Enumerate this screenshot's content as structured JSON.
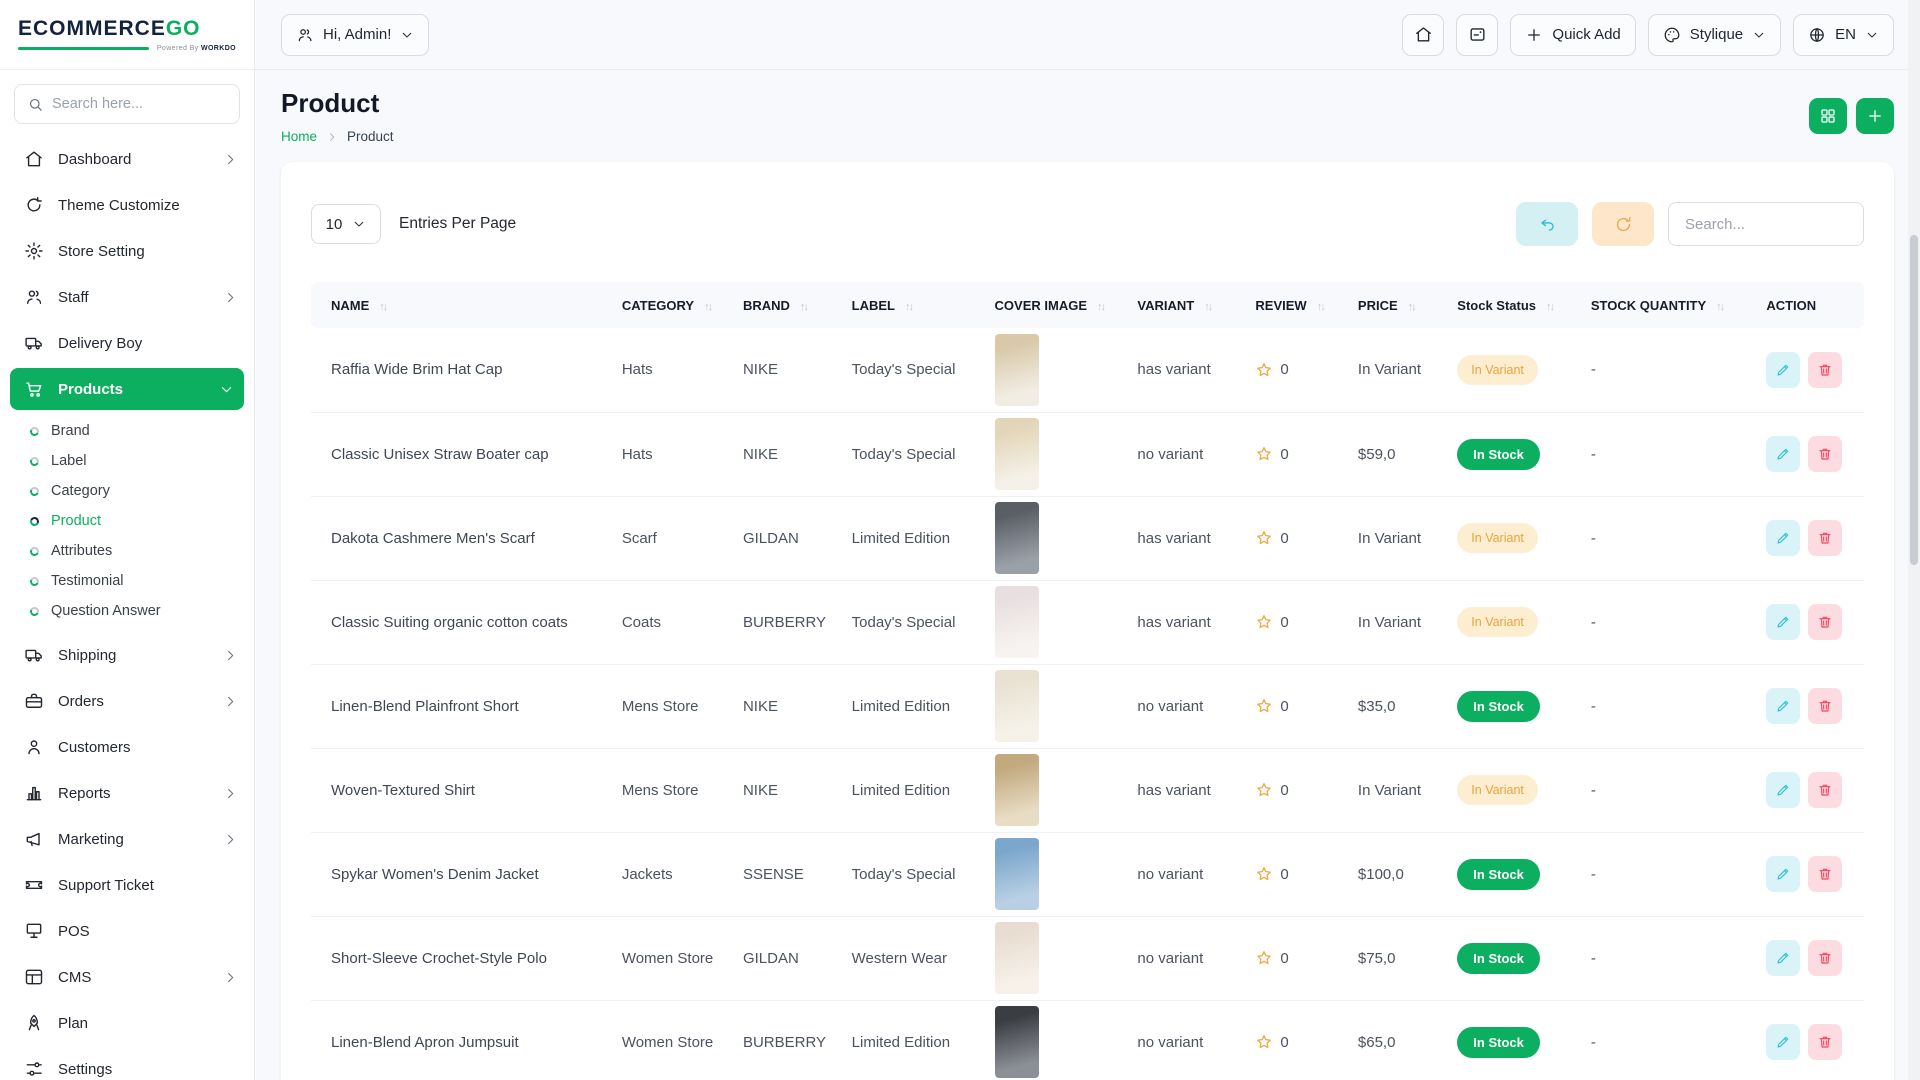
{
  "brand": {
    "name_primary": "ECOMMERCE",
    "name_accent": "GO",
    "powered_by": "Powered By ",
    "powered_brand": "WORKDO"
  },
  "colors": {
    "accent_green": "#0caf60",
    "logo_navy": "#14233c",
    "badge_variant_bg": "#fdeed2",
    "badge_variant_text": "#eca33c",
    "edit_btn": "#2ec2d8",
    "delete_btn": "#f2455f",
    "undo_btn": "#2ebcd4",
    "refresh_btn": "#f2a44a",
    "star": "#f2a43d"
  },
  "sidebar": {
    "search_placeholder": "Search here...",
    "items": [
      {
        "label": "Dashboard",
        "icon": "home-icon",
        "chevron": "right"
      },
      {
        "label": "Theme Customize",
        "icon": "theme-icon",
        "chevron": ""
      },
      {
        "label": "Store Setting",
        "icon": "gear-icon",
        "chevron": ""
      },
      {
        "label": "Staff",
        "icon": "users-icon",
        "chevron": "right"
      },
      {
        "label": "Delivery Boy",
        "icon": "truck-icon",
        "chevron": ""
      },
      {
        "label": "Products",
        "icon": "cart-icon",
        "chevron": "down",
        "active": true,
        "children": [
          "Brand",
          "Label",
          "Category",
          "Product",
          "Attributes",
          "Testimonial",
          "Question Answer"
        ],
        "active_child": "Product"
      },
      {
        "label": "Shipping",
        "icon": "shipping-truck-icon",
        "chevron": "right"
      },
      {
        "label": "Orders",
        "icon": "briefcase-icon",
        "chevron": "right"
      },
      {
        "label": "Customers",
        "icon": "user-icon",
        "chevron": ""
      },
      {
        "label": "Reports",
        "icon": "bar-chart-icon",
        "chevron": "right"
      },
      {
        "label": "Marketing",
        "icon": "megaphone-icon",
        "chevron": "right"
      },
      {
        "label": "Support Ticket",
        "icon": "ticket-icon",
        "chevron": ""
      },
      {
        "label": "POS",
        "icon": "pos-monitor-icon",
        "chevron": ""
      },
      {
        "label": "CMS",
        "icon": "cms-layout-icon",
        "chevron": "right"
      },
      {
        "label": "Plan",
        "icon": "plan-rocket-icon",
        "chevron": ""
      },
      {
        "label": "Settings",
        "icon": "sliders-icon",
        "chevron": ""
      }
    ]
  },
  "topbar": {
    "greeting": "Hi, Admin!",
    "quick_add": "Quick Add",
    "theme_name": "Stylique",
    "language": "EN"
  },
  "page": {
    "title": "Product",
    "breadcrumb": {
      "home": "Home",
      "current": "Product"
    }
  },
  "controls": {
    "entries_value": "10",
    "entries_label": "Entries Per Page",
    "search_placeholder": "Search..."
  },
  "table": {
    "columns": [
      {
        "label": "NAME",
        "sortable": true
      },
      {
        "label": "CATEGORY",
        "sortable": true
      },
      {
        "label": "BRAND",
        "sortable": true
      },
      {
        "label": "LABEL",
        "sortable": true
      },
      {
        "label": "COVER IMAGE",
        "sortable": true
      },
      {
        "label": "VARIANT",
        "sortable": true
      },
      {
        "label": "REVIEW",
        "sortable": true
      },
      {
        "label": "PRICE",
        "sortable": true
      },
      {
        "label": "Stock Status",
        "sortable": true
      },
      {
        "label": "STOCK QUANTITY",
        "sortable": true
      },
      {
        "label": "ACTION",
        "sortable": false
      }
    ],
    "rows": [
      {
        "name": "Raffia Wide Brim Hat Cap",
        "category": "Hats",
        "brand": "NIKE",
        "label": "Today's Special",
        "variant": "has variant",
        "review": "0",
        "price": "In Variant",
        "stock_status": "In Variant",
        "stock_type": "variant",
        "stock_quantity": "-",
        "image_colors": [
          "#d9c9a8",
          "#f2ede4"
        ]
      },
      {
        "name": "Classic Unisex Straw Boater cap",
        "category": "Hats",
        "brand": "NIKE",
        "label": "Today's Special",
        "variant": "no variant",
        "review": "0",
        "price": "$59,0",
        "stock_status": "In Stock",
        "stock_type": "stock",
        "stock_quantity": "-",
        "image_colors": [
          "#e3d6b8",
          "#f5f1e8"
        ]
      },
      {
        "name": "Dakota Cashmere Men's Scarf",
        "category": "Scarf",
        "brand": "GILDAN",
        "label": "Limited Edition",
        "variant": "has variant",
        "review": "0",
        "price": "In Variant",
        "stock_status": "In Variant",
        "stock_type": "variant",
        "stock_quantity": "-",
        "image_colors": [
          "#5a5f66",
          "#9aa0a8"
        ]
      },
      {
        "name": "Classic Suiting organic cotton coats",
        "category": "Coats",
        "brand": "BURBERRY",
        "label": "Today's Special",
        "variant": "has variant",
        "review": "0",
        "price": "In Variant",
        "stock_status": "In Variant",
        "stock_type": "variant",
        "stock_quantity": "-",
        "image_colors": [
          "#e8dfe0",
          "#f7f3f0"
        ]
      },
      {
        "name": "Linen-Blend Plainfront Short",
        "category": "Mens Store",
        "brand": "NIKE",
        "label": "Limited Edition",
        "variant": "no variant",
        "review": "0",
        "price": "$35,0",
        "stock_status": "In Stock",
        "stock_type": "stock",
        "stock_quantity": "-",
        "image_colors": [
          "#e9e2d2",
          "#f6f2e9"
        ]
      },
      {
        "name": "Woven-Textured Shirt",
        "category": "Mens Store",
        "brand": "NIKE",
        "label": "Limited Edition",
        "variant": "has variant",
        "review": "0",
        "price": "In Variant",
        "stock_status": "In Variant",
        "stock_type": "variant",
        "stock_quantity": "-",
        "image_colors": [
          "#c2a97e",
          "#e8dcc4"
        ]
      },
      {
        "name": "Spykar Women's Denim Jacket",
        "category": "Jackets",
        "brand": "SSENSE",
        "label": "Today's Special",
        "variant": "no variant",
        "review": "0",
        "price": "$100,0",
        "stock_status": "In Stock",
        "stock_type": "stock",
        "stock_quantity": "-",
        "image_colors": [
          "#7ba7cc",
          "#b9d0e4"
        ]
      },
      {
        "name": "Short-Sleeve Crochet-Style Polo",
        "category": "Women Store",
        "brand": "GILDAN",
        "label": "Western Wear",
        "variant": "no variant",
        "review": "0",
        "price": "$75,0",
        "stock_status": "In Stock",
        "stock_type": "stock",
        "stock_quantity": "-",
        "image_colors": [
          "#e8ddd0",
          "#f7f1ea"
        ]
      },
      {
        "name": "Linen-Blend Apron Jumpsuit",
        "category": "Women Store",
        "brand": "BURBERRY",
        "label": "Limited Edition",
        "variant": "no variant",
        "review": "0",
        "price": "$65,0",
        "stock_status": "In Stock",
        "stock_type": "stock",
        "stock_quantity": "-",
        "image_colors": [
          "#3a3d42",
          "#8b8f96"
        ]
      }
    ]
  }
}
